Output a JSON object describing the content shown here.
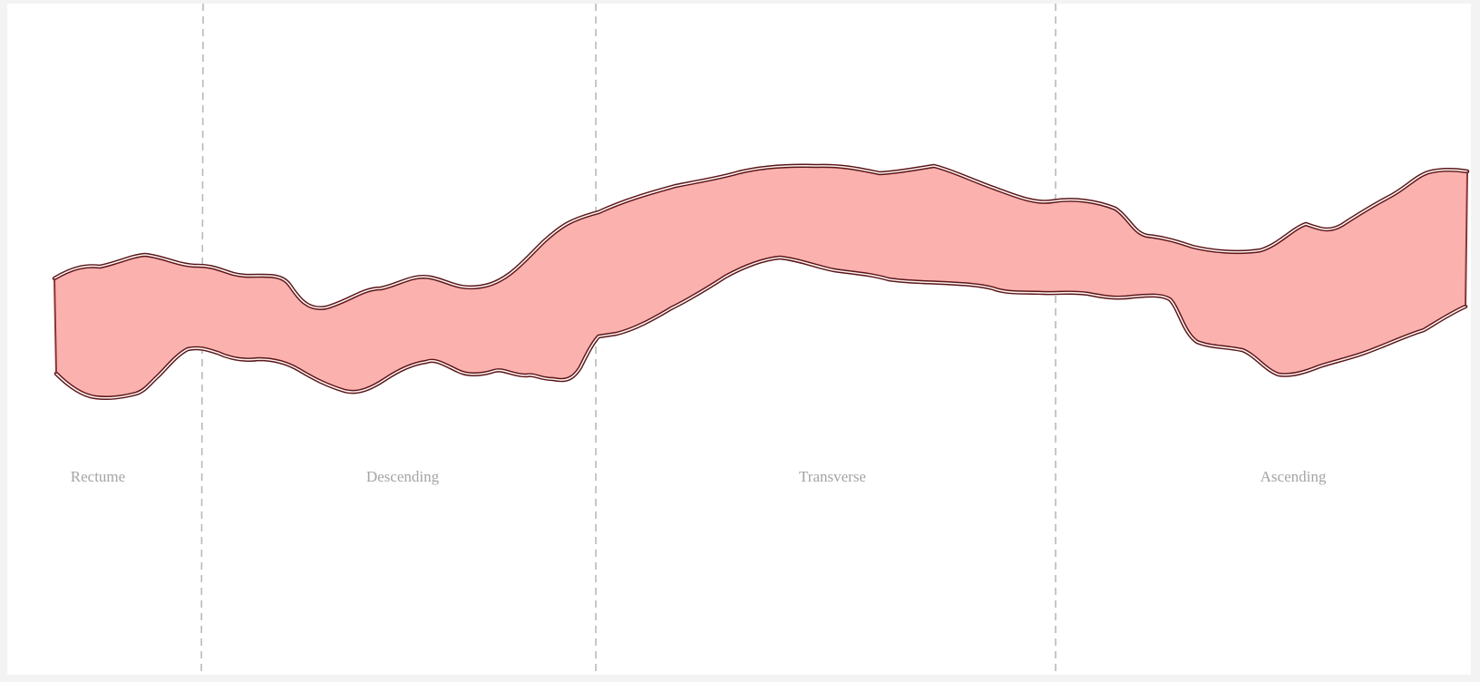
{
  "segments": [
    {
      "key": "rectum",
      "label": "Rectume"
    },
    {
      "key": "descending",
      "label": "Descending"
    },
    {
      "key": "transverse",
      "label": "Transverse"
    },
    {
      "key": "ascending",
      "label": "Ascending"
    }
  ],
  "colors": {
    "colon_fill": "#fbb2ae",
    "wall_outline": "#5a1518",
    "divider": "#b9b9b9",
    "label_text": "#a4a4a4"
  }
}
